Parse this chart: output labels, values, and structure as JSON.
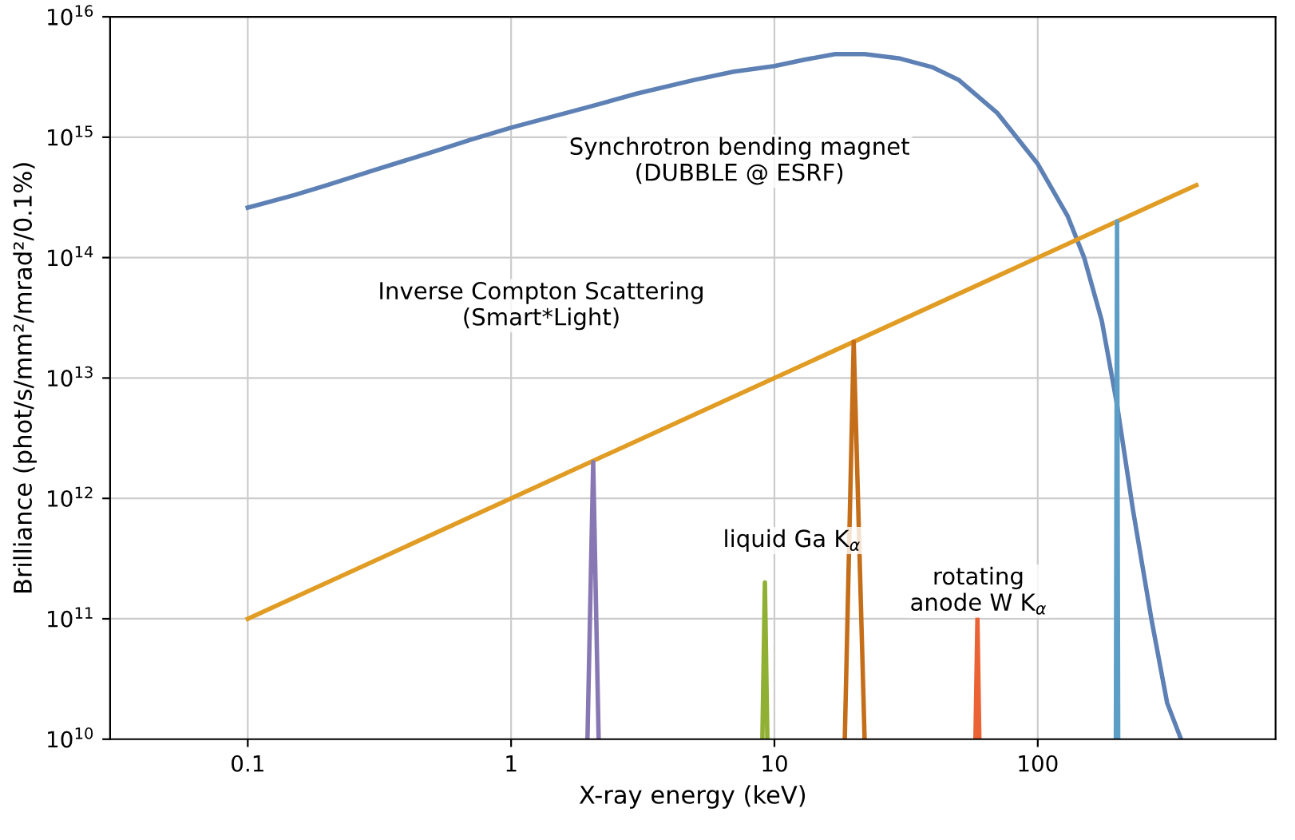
{
  "chart_data": {
    "type": "line",
    "xlabel": "X-ray energy (keV)",
    "ylabel": "Brilliance (phot/s/mm²/mrad²/0.1%)",
    "log": "xy",
    "grid": true,
    "marker": "none",
    "line_style": "solid",
    "xlim": [
      0.03,
      800
    ],
    "ylim": [
      10000000000.0,
      1e+16
    ],
    "xticks": [
      0.1,
      1,
      10,
      100
    ],
    "yticks": [
      {
        "value": 10000000000.0,
        "label": "10$^{10}$"
      },
      {
        "value": 100000000000.0,
        "label": "10$^{11}$"
      },
      {
        "value": 1000000000000.0,
        "label": "10$^{12}$"
      },
      {
        "value": 10000000000000.0,
        "label": "10$^{13}$"
      },
      {
        "value": 100000000000000.0,
        "label": "10$^{14}$"
      },
      {
        "value": 1000000000000000.0,
        "label": "10$^{15}$"
      },
      {
        "value": 1e+16,
        "label": "10$^{16}$"
      }
    ],
    "series": [
      {
        "color": "#5e81b5",
        "x": [
          0.1,
          0.15,
          0.2,
          0.3,
          0.5,
          0.7,
          1,
          2,
          3,
          5,
          7,
          10,
          13,
          17,
          22,
          30,
          40,
          50,
          70,
          100,
          130,
          150,
          175,
          200,
          230,
          270,
          310,
          350
        ],
        "values": [
          260000000000000.0,
          330000000000000.0,
          400000000000000.0,
          530000000000000.0,
          750000000000000.0,
          950000000000000.0,
          1200000000000000.0,
          1800000000000000.0,
          2300000000000000.0,
          3000000000000000.0,
          3500000000000000.0,
          3900000000000000.0,
          4400000000000000.0,
          4900000000000000.0,
          4900000000000000.0,
          4500000000000000.0,
          3800000000000000.0,
          3000000000000000.0,
          1600000000000000.0,
          600000000000000.0,
          220000000000000.0,
          100000000000000.0,
          30000000000000.0,
          6000000000000.0,
          800000000000.0,
          100000000000.0,
          20000000000.0,
          10000000000.0
        ]
      },
      {
        "color": "#e19c24",
        "x": [
          0.1,
          400
        ],
        "values": [
          100000000000.0,
          400000000000000.0
        ]
      },
      {
        "color": "#8778b3",
        "x": [
          1.95,
          2.05,
          2.15
        ],
        "values": [
          10000000000.0,
          2000000000000.0,
          10000000000.0
        ]
      },
      {
        "color": "#8fb032",
        "x": [
          9.0,
          9.2,
          9.4
        ],
        "values": [
          10000000000.0,
          200000000000.0,
          10000000000.0
        ]
      },
      {
        "color": "#c56e1a",
        "x": [
          18.5,
          20,
          22
        ],
        "values": [
          10000000000.0,
          20000000000000.0,
          10000000000.0
        ]
      },
      {
        "color": "#eb6235",
        "x": [
          58,
          59,
          60
        ],
        "values": [
          10000000000.0,
          100000000000.0,
          10000000000.0
        ]
      },
      {
        "color": "#5d9ec7",
        "x": [
          198,
          200,
          202
        ],
        "values": [
          10000000000.0,
          200000000000000.0,
          10000000000.0
        ]
      }
    ],
    "annotations": [
      "Synchrotron bending magnet\n(DUBBLE @ ESRF)",
      "Inverse Compton Scattering\n(Smart*Light)",
      "liquid Ga K$_{α}$",
      "rotating\nanode W K$_{α}$"
    ]
  }
}
